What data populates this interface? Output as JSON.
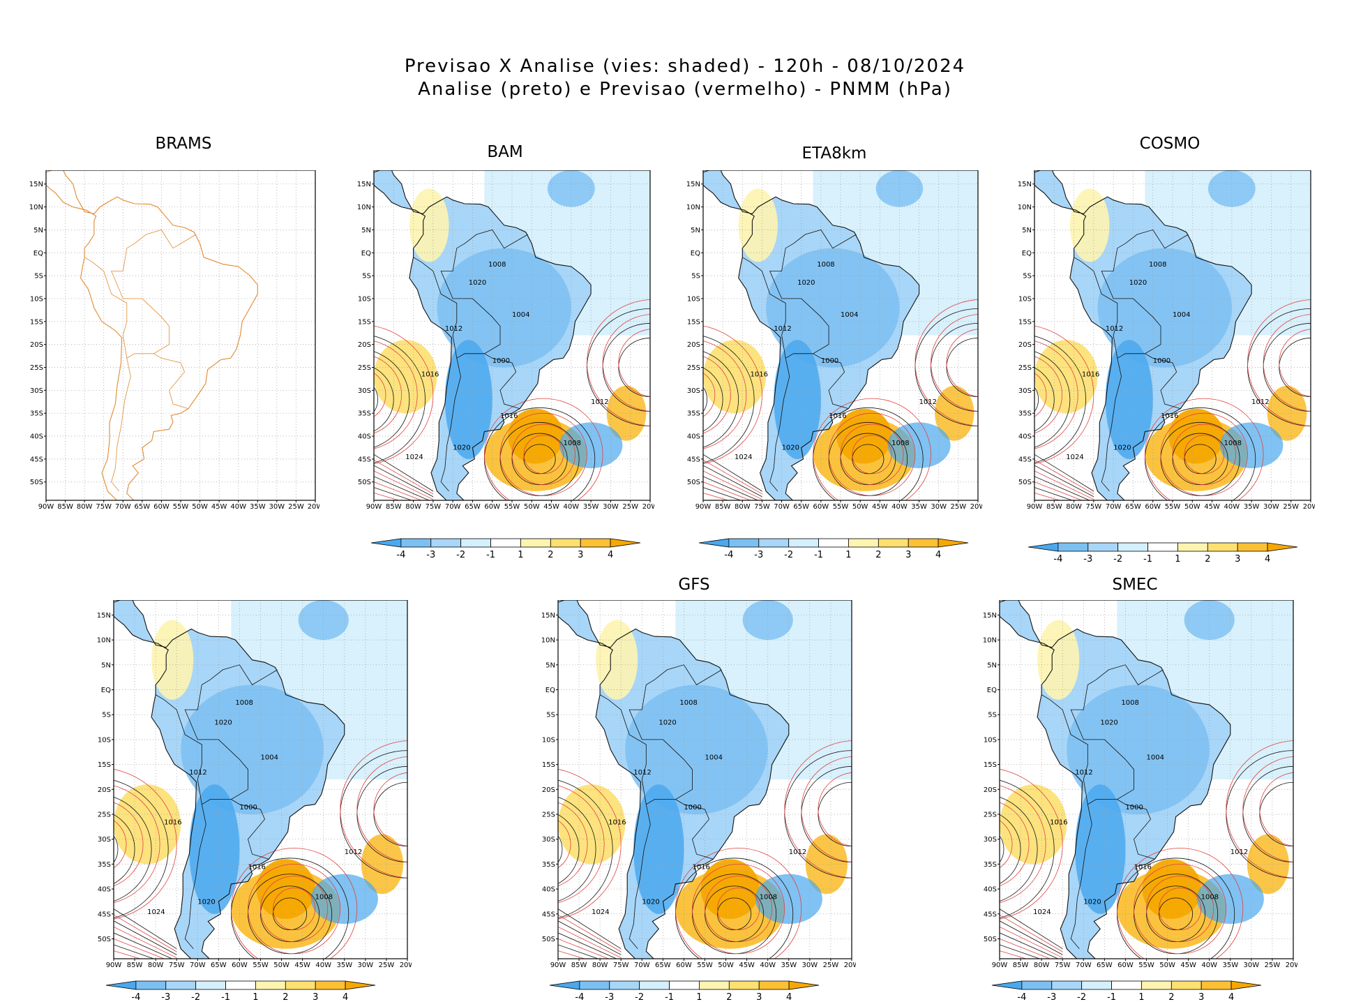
{
  "title": {
    "line1": "Previsao X Analise (vies: shaded) - 120h - 08/10/2024",
    "line2": "Analise (preto) e Previsao (vermelho) - PNMM (hPa)"
  },
  "axes": {
    "lat_labels": [
      "15N",
      "10N",
      "5N",
      "EQ",
      "5S",
      "10S",
      "15S",
      "20S",
      "25S",
      "30S",
      "35S",
      "40S",
      "45S",
      "50S"
    ],
    "lon_labels": [
      "90W",
      "85W",
      "80W",
      "75W",
      "70W",
      "65W",
      "60W",
      "55W",
      "50W",
      "45W",
      "40W",
      "35W",
      "30W",
      "25W",
      "20W"
    ]
  },
  "colorbar": {
    "labels": [
      "-4",
      "-3",
      "-2",
      "-1",
      "1",
      "2",
      "3",
      "4"
    ],
    "colors": [
      "#4aa8ee",
      "#7cc0f2",
      "#a8d6f8",
      "#d4f0fc",
      "#ffffff",
      "#fdf4b0",
      "#fde070",
      "#fbc033",
      "#f7a800"
    ]
  },
  "isobar_labels": [
    "1008",
    "1012",
    "1016",
    "1020",
    "1024",
    "1004",
    "1000"
  ],
  "panels": [
    {
      "name": "BRAMS",
      "has_colorbar": false,
      "shaded": false
    },
    {
      "name": "BAM",
      "has_colorbar": true,
      "shaded": true
    },
    {
      "name": "ETA8km",
      "has_colorbar": true,
      "shaded": true
    },
    {
      "name": "COSMO",
      "has_colorbar": true,
      "shaded": true
    },
    {
      "name": "",
      "has_colorbar": true,
      "shaded": true
    },
    {
      "name": "GFS",
      "has_colorbar": true,
      "shaded": true
    },
    {
      "name": "SMEC",
      "has_colorbar": true,
      "shaded": true
    }
  ],
  "colors": {
    "coast_brams": "#e08a30",
    "coast": "#111111",
    "forecast_isobar": "#e04040",
    "analysis_isobar": "#111111",
    "grid": "#9a9a9a"
  }
}
